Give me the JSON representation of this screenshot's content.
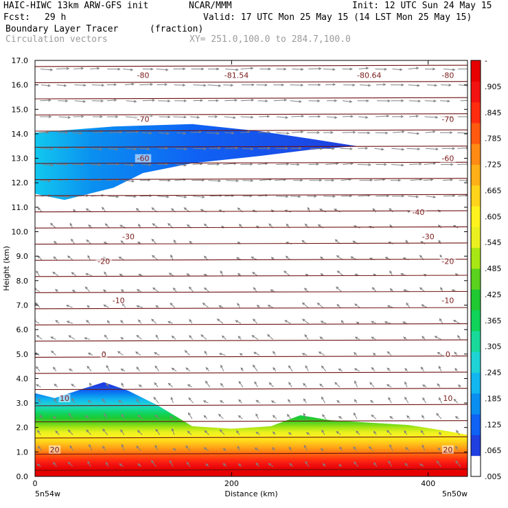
{
  "header": {
    "model": "HAIC-HIWC 13km ARW-GFS init",
    "org": "NCAR/MMM",
    "init": "Init: 12 UTC Sun 24 May 15",
    "fcst_label": "Fcst:",
    "fcst_value": "29 h",
    "valid": "Valid: 17 UTC Mon 25 May 15 (14 LST Mon 25 May 15)",
    "field": "Boundary Layer Tracer",
    "units": "(fraction)",
    "overlay": "Circulation vectors",
    "xy": "XY= 251.0,100.0 to 284.7,100.0"
  },
  "chart_data": {
    "type": "heatmap",
    "xlabel": "Distance (km)",
    "ylabel": "Height (km)",
    "xlim": [
      0,
      440
    ],
    "ylim": [
      0,
      17
    ],
    "x_ticks": [
      0,
      200,
      400
    ],
    "y_ticks": [
      "0.0",
      "1.0",
      "2.0",
      "3.0",
      "4.0",
      "5.0",
      "6.0",
      "7.0",
      "8.0",
      "9.0",
      "10.0",
      "11.0",
      "12.0",
      "13.0",
      "14.0",
      "15.0",
      "16.0",
      "17.0"
    ],
    "x_end_labels": [
      "5n54w",
      "5n50w"
    ],
    "colorbar": {
      "labels": [
        ".005",
        ".065",
        ".125",
        ".185",
        ".245",
        ".305",
        ".365",
        ".425",
        ".485",
        ".545",
        ".605",
        ".665",
        ".725",
        ".785",
        ".845",
        ".905",
        "-"
      ],
      "colors": [
        "#ffffff",
        "#1f3fe0",
        "#0f62f4",
        "#0a8ff0",
        "#12b7ef",
        "#1fd3d5",
        "#18d99a",
        "#10d45a",
        "#20c832",
        "#5ad21e",
        "#a8e614",
        "#eaf020",
        "#fff21f",
        "#ffd41a",
        "#ffb018",
        "#ff8a14",
        "#ff5a10",
        "#ff2c10",
        "#f21212",
        "#e60000"
      ]
    },
    "tracer_top_km": [
      [
        0,
        3.4
      ],
      [
        20,
        3.2
      ],
      [
        50,
        3.6
      ],
      [
        70,
        3.85
      ],
      [
        95,
        3.5
      ],
      [
        125,
        2.9
      ],
      [
        160,
        2.05
      ],
      [
        200,
        1.95
      ],
      [
        240,
        2.05
      ],
      [
        270,
        2.5
      ],
      [
        300,
        2.3
      ],
      [
        340,
        2.2
      ],
      [
        380,
        2.1
      ],
      [
        420,
        1.85
      ],
      [
        440,
        1.7
      ]
    ],
    "upper_layer": {
      "top_km": [
        [
          0,
          14.05
        ],
        [
          80,
          14.3
        ],
        [
          160,
          14.4
        ],
        [
          230,
          14.1
        ],
        [
          280,
          13.8
        ],
        [
          327,
          13.5
        ]
      ],
      "bottom_km": [
        [
          0,
          11.55
        ],
        [
          30,
          11.3
        ],
        [
          80,
          11.8
        ],
        [
          110,
          12.4
        ],
        [
          160,
          12.8
        ],
        [
          230,
          13.1
        ],
        [
          280,
          13.35
        ],
        [
          327,
          13.5
        ]
      ]
    },
    "temperature_contours_C": [
      {
        "label": "-80",
        "km": 16.4,
        "label_positions_km": [
          110,
          420
        ]
      },
      {
        "label": "-81.54",
        "km": 16.4,
        "label_positions_km": [
          205
        ]
      },
      {
        "label": "-80.64",
        "km": 16.4,
        "label_positions_km": [
          340
        ]
      },
      {
        "label": "-70",
        "km": 14.6,
        "label_positions_km": [
          110,
          420
        ]
      },
      {
        "label": "-60",
        "km": 13.0,
        "label_positions_km": [
          110,
          420
        ]
      },
      {
        "label": "-40",
        "km": 10.8,
        "label_positions_km": [
          390
        ]
      },
      {
        "label": "-30",
        "km": 9.8,
        "label_positions_km": [
          95,
          400
        ]
      },
      {
        "label": "-20",
        "km": 8.8,
        "label_positions_km": [
          70,
          420
        ]
      },
      {
        "label": "-10",
        "km": 7.2,
        "label_positions_km": [
          85,
          420
        ]
      },
      {
        "label": "0",
        "km": 5.0,
        "label_positions_km": [
          70,
          420
        ]
      },
      {
        "label": "10",
        "km": 3.2,
        "label_positions_km": [
          30,
          420
        ]
      },
      {
        "label": "20",
        "km": 1.1,
        "label_positions_km": [
          20,
          420
        ]
      }
    ]
  }
}
